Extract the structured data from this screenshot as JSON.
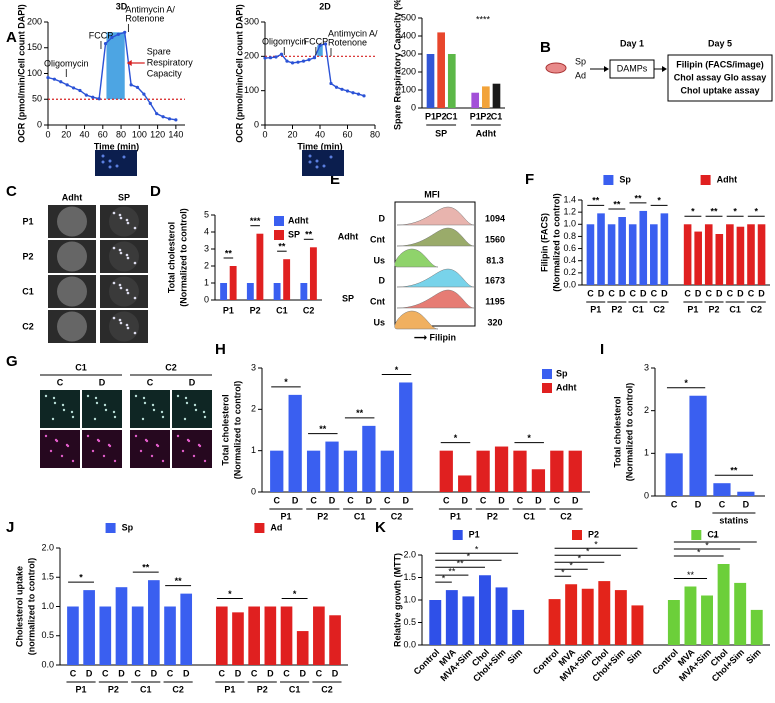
{
  "panel_labels": [
    "A",
    "B",
    "C",
    "D",
    "E",
    "F",
    "G",
    "H",
    "I",
    "J",
    "K"
  ],
  "diagram": {
    "day1": "Day 1",
    "day5": "Day 5",
    "cells": [
      "Sp",
      "Ad"
    ],
    "treatment": "DAMPs",
    "assays": [
      "Filipin (FACS/image)",
      "Chol assay Glo assay",
      "Chol uptake assay"
    ]
  },
  "images": {
    "C": {
      "columns": [
        "Adht",
        "SP"
      ],
      "rows": [
        "P1",
        "P2",
        "C1",
        "C2"
      ]
    },
    "G": [
      {
        "name": "C1",
        "columns": [
          "C",
          "D"
        ]
      },
      {
        "name": "C2",
        "columns": [
          "C",
          "D"
        ]
      }
    ]
  },
  "facs": {
    "title": "MFI",
    "xlabel": "⟶ Filipin",
    "groups": [
      {
        "name": "Adht",
        "rows": [
          {
            "label": "D",
            "value": 1094,
            "color": "#e8b4ae"
          },
          {
            "label": "Cnt",
            "value": 1560,
            "color": "#9aab6a"
          },
          {
            "label": "Us",
            "value": 81.3,
            "color": "#8fd36b"
          }
        ]
      },
      {
        "name": "SP",
        "rows": [
          {
            "label": "D",
            "value": 1673,
            "color": "#78d3ea"
          },
          {
            "label": "Cnt",
            "value": 1195,
            "color": "#e67c74"
          },
          {
            "label": "Us",
            "value": 320,
            "color": "#f0b060"
          }
        ]
      }
    ]
  },
  "chart_data": [
    {
      "type": "line",
      "title": "3D",
      "xlabel": "Time (min)",
      "ylabel": [
        "OCR (pmol/min/Cell count DAPI)"
      ],
      "x": [
        0,
        7,
        14,
        21,
        28,
        35,
        42,
        49,
        56,
        63,
        70,
        77,
        84,
        91,
        98,
        105,
        112,
        119,
        126,
        133,
        140
      ],
      "series": [
        {
          "color": "#2b52d6",
          "values": [
            92,
            89,
            84,
            78,
            72,
            67,
            58,
            54,
            51,
            158,
            170,
            176,
            180,
            78,
            73,
            60,
            42,
            22,
            16,
            12,
            10
          ]
        }
      ],
      "xlim": [
        0,
        150
      ],
      "xticks": [
        0,
        20,
        40,
        60,
        80,
        100,
        120,
        140
      ],
      "ylim": [
        0,
        200
      ],
      "yticks": [
        0,
        50,
        100,
        150,
        200
      ],
      "reference_line": 50,
      "reference_color": "#d62020",
      "highlight": [
        64,
        84
      ],
      "highlight_color": "#3a9be0",
      "injections": [
        {
          "label": [
            "Oligomycin"
          ],
          "x": 20
        },
        {
          "label": [
            "FCCP"
          ],
          "x": 58
        },
        {
          "label": [
            "Antimycin A/",
            "Rotenone"
          ],
          "x": 88
        }
      ],
      "note": [
        "Spare",
        "Respiratory",
        "Capacity"
      ]
    },
    {
      "type": "line",
      "title": "2D",
      "xlabel": "Time (min)",
      "ylabel": [
        "OCR (pmol/min/Cell count DAPI)"
      ],
      "x": [
        0,
        4,
        8,
        12,
        16,
        20,
        24,
        28,
        32,
        36,
        40,
        44,
        48,
        52,
        56,
        60,
        64,
        68,
        72
      ],
      "series": [
        {
          "color": "#2b52d6",
          "values": [
            195,
            196,
            198,
            206,
            186,
            181,
            183,
            186,
            190,
            196,
            232,
            236,
            121,
            110,
            104,
            99,
            94,
            90,
            85
          ]
        }
      ],
      "xlim": [
        0,
        80
      ],
      "xticks": [
        0,
        20,
        40,
        60,
        80
      ],
      "ylim": [
        0,
        300
      ],
      "yticks": [
        0,
        100,
        200,
        300
      ],
      "reference_line": 200,
      "reference_color": "#d62020",
      "highlight": [
        38,
        42
      ],
      "highlight_color": "#3a9be0",
      "injections": [
        {
          "label": [
            "Oligomycin"
          ],
          "x": 14
        },
        {
          "label": [
            "FCCP"
          ],
          "x": 37
        },
        {
          "label": [
            "Antimycin A/",
            "Rotenone"
          ],
          "x": 48
        }
      ]
    },
    {
      "type": "bar",
      "ylabel": [
        "Spare Respiratory Capacity (%)"
      ],
      "categories": [
        "P1",
        "P2",
        "C1"
      ],
      "series": [
        {
          "name": "SP",
          "colors": [
            "#3256d6",
            "#e8462c",
            "#5cb848"
          ],
          "values": [
            300,
            420,
            300
          ]
        },
        {
          "name": "Adht",
          "colors": [
            "#a24fd8",
            "#f2a33a",
            "#1a1a1a"
          ],
          "values": [
            85,
            120,
            135
          ]
        }
      ],
      "ylim": [
        0,
        500
      ],
      "yticks": [
        0,
        100,
        200,
        300,
        400,
        500
      ],
      "legend": false,
      "annotation": "****"
    },
    {
      "type": "bar",
      "grouped": true,
      "ylabel": [
        "Total cholesterol",
        "(Normalized to control)"
      ],
      "categories": [
        "P1",
        "P2",
        "C1",
        "C2"
      ],
      "series": [
        {
          "name": "Adht",
          "color": "#3a5ff0",
          "values": [
            1,
            1,
            1,
            1
          ]
        },
        {
          "name": "SP",
          "color": "#e02020",
          "values": [
            2.0,
            3.9,
            2.4,
            3.1
          ]
        }
      ],
      "ylim": [
        0,
        5
      ],
      "yticks": [
        0,
        1,
        2,
        3,
        4,
        5
      ],
      "legend": "upper right",
      "significance": [
        "**",
        "***",
        "**",
        "**"
      ]
    },
    {
      "type": "bar",
      "ylabel": [
        "Filipin (FACS)",
        "(Normalized to control)"
      ],
      "categories": [
        "C",
        "D",
        "C",
        "D",
        "C",
        "D",
        "C",
        "D"
      ],
      "groups": [
        "P1",
        "P2",
        "C1",
        "C2"
      ],
      "series": [
        {
          "name": "Sp",
          "color": "#3a5ff0",
          "values": [
            1,
            1.18,
            1,
            1.12,
            1,
            1.22,
            1,
            1.18
          ],
          "significance": [
            "**",
            "**",
            "**",
            "*"
          ]
        },
        {
          "name": "Adht",
          "color": "#e02020",
          "values": [
            1,
            0.88,
            1,
            0.84,
            1,
            0.96,
            1,
            1.0
          ],
          "significance": [
            "*",
            "**",
            "*",
            "*"
          ]
        }
      ],
      "ylim": [
        0,
        1.4
      ],
      "yticks": [
        {
          "value": 0,
          "label": "0.0"
        },
        0.2,
        0.4,
        0.6,
        0.8,
        {
          "value": 1,
          "label": "1.0"
        },
        1.2,
        1.4
      ],
      "legend": "top"
    },
    {
      "type": "bar",
      "ylabel": [
        "Total cholesterol",
        "(Normalized to control)"
      ],
      "categories": [
        "C",
        "D",
        "C",
        "D",
        "C",
        "D",
        "C",
        "D"
      ],
      "groups": [
        "P1",
        "P2",
        "C1",
        "C2"
      ],
      "series": [
        {
          "name": "Sp",
          "color": "#3a5ff0",
          "values": [
            1,
            2.35,
            1,
            1.22,
            1,
            1.6,
            1,
            2.65
          ],
          "significance": [
            "*",
            "**",
            "**",
            "*"
          ]
        },
        {
          "name": "Adht",
          "color": "#e02020",
          "values": [
            1,
            0.4,
            1,
            1.1,
            1,
            0.55,
            1,
            1.0
          ],
          "significance": [
            "*",
            null,
            "*",
            null
          ]
        }
      ],
      "ylim": [
        0,
        3
      ],
      "yticks": [
        0,
        1,
        2,
        3
      ],
      "legend": "upper right"
    },
    {
      "type": "bar",
      "ylabel": [
        "Total cholesterol",
        "(Normalized to control)"
      ],
      "categories": [
        "C",
        "D",
        "C",
        "D"
      ],
      "groups": [
        null,
        "statins"
      ],
      "series": [
        {
          "color": "#3a5ff0",
          "values": [
            1,
            2.35,
            0.3,
            0.1
          ],
          "significance": [
            "*",
            "**"
          ]
        }
      ],
      "ylim": [
        0,
        3
      ],
      "yticks": [
        0,
        1,
        2,
        3
      ],
      "legend": false
    },
    {
      "type": "bar",
      "ylabel": [
        "Cholesterol uptake",
        "(normalized to control)"
      ],
      "categories": [
        "C",
        "D",
        "C",
        "D",
        "C",
        "D",
        "C",
        "D"
      ],
      "groups": [
        "P1",
        "P2",
        "C1",
        "C2"
      ],
      "series": [
        {
          "name": "Sp",
          "color": "#3a5ff0",
          "values": [
            1,
            1.28,
            1,
            1.33,
            1,
            1.45,
            1,
            1.22
          ],
          "significance": [
            "*",
            null,
            "**",
            "**"
          ]
        },
        {
          "name": "Ad",
          "color": "#e02020",
          "values": [
            1,
            0.9,
            1,
            1.0,
            1,
            0.58,
            1,
            0.85
          ],
          "significance": [
            "*",
            null,
            "*",
            null
          ]
        }
      ],
      "ylim": [
        0,
        2
      ],
      "yticks": [
        {
          "value": 0,
          "label": "0.0"
        },
        0.5,
        {
          "value": 1,
          "label": "1.0"
        },
        1.5,
        {
          "value": 2,
          "label": "2.0"
        }
      ],
      "legend": "top"
    },
    {
      "type": "bar",
      "ylabel": [
        "Relative growth (MTT)"
      ],
      "categories": [
        "Control",
        "MVA",
        "MVA+Sim",
        "Chol",
        "Chol+Sim",
        "Sim"
      ],
      "series": [
        {
          "name": "P1",
          "color": "#2f50e8",
          "values": [
            1.0,
            1.22,
            1.08,
            1.55,
            1.28,
            0.78
          ],
          "significance": [
            null,
            "*",
            "**",
            "**",
            "*",
            "*"
          ]
        },
        {
          "name": "P2",
          "color": "#e3241b",
          "values": [
            1.02,
            1.35,
            1.25,
            1.42,
            1.22,
            0.88
          ],
          "significance": [
            null,
            "*",
            "*",
            "*",
            "*",
            "*"
          ]
        },
        {
          "name": "C1",
          "color": "#6ccf3a",
          "values": [
            1.0,
            1.3,
            1.1,
            1.8,
            1.38,
            0.78
          ],
          "significance": [
            null,
            null,
            "**",
            "*",
            "*",
            "*"
          ]
        }
      ],
      "ylim": [
        0,
        2
      ],
      "yticks": [
        {
          "value": 0,
          "label": "0.0"
        },
        0.5,
        {
          "value": 1,
          "label": "1.0"
        },
        1.5,
        {
          "value": 2,
          "label": "2.0"
        }
      ],
      "legend": "top"
    }
  ]
}
